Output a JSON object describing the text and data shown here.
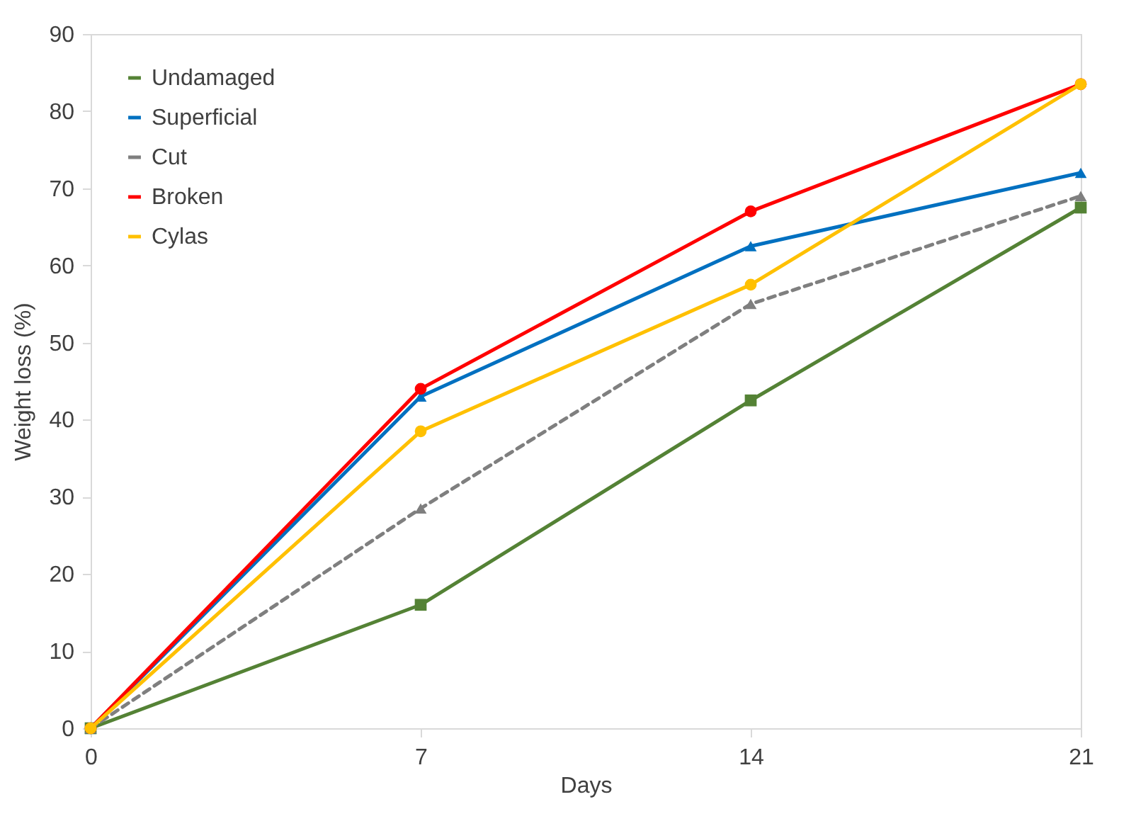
{
  "chart_data": {
    "type": "line",
    "xlabel": "Days",
    "ylabel": "Weight loss (%)",
    "x": [
      0,
      7,
      14,
      21
    ],
    "xlim": [
      0,
      21
    ],
    "xticks": [
      0,
      7,
      14,
      21
    ],
    "ylim": [
      0,
      90
    ],
    "yticks": [
      0,
      10,
      20,
      30,
      40,
      50,
      60,
      70,
      80,
      90
    ],
    "grid": false,
    "legend": "top left",
    "series": [
      {
        "name": "Undamaged",
        "color": "#548235",
        "marker": "square",
        "line_style": "solid",
        "values": [
          0,
          16,
          42.5,
          67.5
        ]
      },
      {
        "name": "Superficial",
        "color": "#0070c0",
        "marker": "triangle",
        "line_style": "solid",
        "values": [
          0,
          43,
          62.5,
          72
        ]
      },
      {
        "name": "Cut",
        "color": "#7f7f7f",
        "marker": "triangle",
        "line_style": "dashed",
        "values": [
          0,
          28.5,
          55,
          69
        ]
      },
      {
        "name": "Broken",
        "color": "#ff0000",
        "marker": "circle",
        "line_style": "solid",
        "values": [
          0,
          44,
          67,
          83.5
        ]
      },
      {
        "name": "Cylas",
        "color": "#ffc000",
        "marker": "circle",
        "line_style": "solid",
        "values": [
          0,
          38.5,
          57.5,
          83.5
        ]
      }
    ]
  }
}
